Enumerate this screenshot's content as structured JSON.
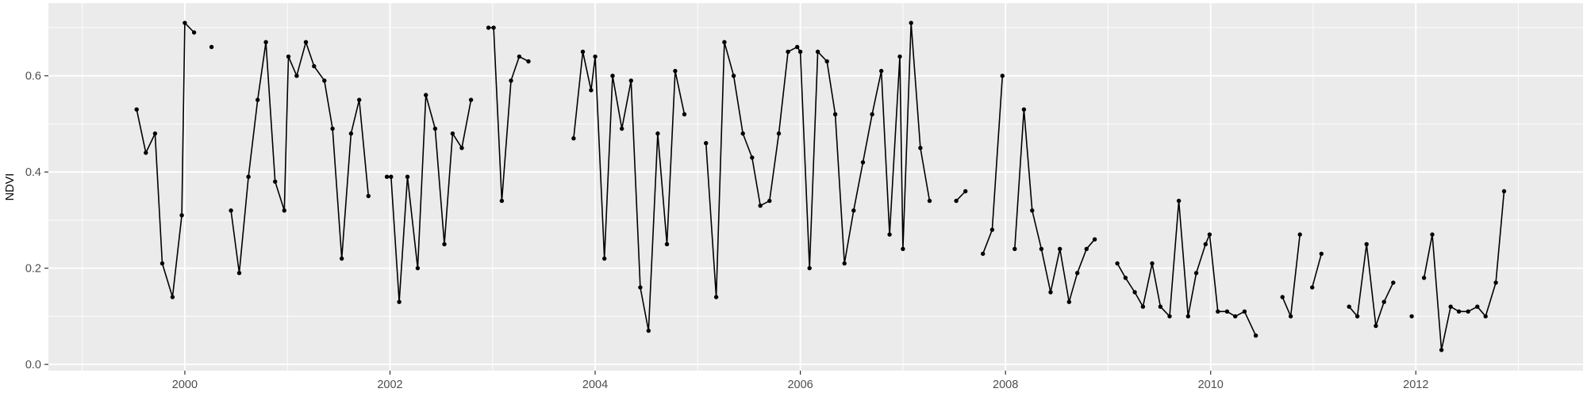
{
  "chart_data": {
    "type": "line",
    "title": "",
    "xlabel": "",
    "ylabel": "NDVI",
    "legend": "none",
    "grid": true,
    "x_axis": {
      "min": 1998.67,
      "max": 2013.63,
      "major_ticks": [
        {
          "value": 2000,
          "label": "2000"
        },
        {
          "value": 2002,
          "label": "2002"
        },
        {
          "value": 2004,
          "label": "2004"
        },
        {
          "value": 2006,
          "label": "2006"
        },
        {
          "value": 2008,
          "label": "2008"
        },
        {
          "value": 2010,
          "label": "2010"
        },
        {
          "value": 2012,
          "label": "2012"
        }
      ],
      "minor_ticks": [
        1999,
        2001,
        2003,
        2005,
        2007,
        2009,
        2011,
        2013
      ]
    },
    "y_axis": {
      "min": -0.013,
      "max": 0.751,
      "major_ticks": [
        {
          "value": 0.0,
          "label": "0.0"
        },
        {
          "value": 0.2,
          "label": "0.2"
        },
        {
          "value": 0.4,
          "label": "0.4"
        },
        {
          "value": 0.6,
          "label": "0.6"
        }
      ],
      "minor_ticks": [
        0.1,
        0.3,
        0.5,
        0.7
      ]
    },
    "style": {
      "panel_bg": "#ebebeb",
      "grid_major_color": "#ffffff",
      "grid_minor_color": "#ffffff",
      "line_color": "#000000",
      "point_color": "#000000",
      "tick_color": "#333333",
      "axis_text_color": "#4d4d4d"
    },
    "series_name": "NDVI",
    "segments": [
      [
        [
          1999.53,
          0.53
        ],
        [
          1999.62,
          0.44
        ],
        [
          1999.71,
          0.48
        ],
        [
          1999.78,
          0.21
        ],
        [
          1999.88,
          0.14
        ],
        [
          1999.97,
          0.31
        ],
        [
          2000.0,
          0.71
        ],
        [
          2000.09,
          0.69
        ]
      ],
      [
        [
          2000.26,
          0.66
        ]
      ],
      [
        [
          2000.45,
          0.32
        ],
        [
          2000.53,
          0.19
        ],
        [
          2000.62,
          0.39
        ],
        [
          2000.71,
          0.55
        ],
        [
          2000.79,
          0.67
        ],
        [
          2000.88,
          0.38
        ],
        [
          2000.97,
          0.32
        ],
        [
          2001.01,
          0.64
        ],
        [
          2001.09,
          0.6
        ],
        [
          2001.18,
          0.67
        ],
        [
          2001.26,
          0.62
        ],
        [
          2001.36,
          0.59
        ],
        [
          2001.44,
          0.49
        ],
        [
          2001.53,
          0.22
        ],
        [
          2001.62,
          0.48
        ],
        [
          2001.7,
          0.55
        ],
        [
          2001.79,
          0.35
        ]
      ],
      [
        [
          2001.97,
          0.39
        ],
        [
          2002.01,
          0.39
        ],
        [
          2002.09,
          0.13
        ],
        [
          2002.17,
          0.39
        ],
        [
          2002.27,
          0.2
        ],
        [
          2002.35,
          0.56
        ],
        [
          2002.44,
          0.49
        ],
        [
          2002.53,
          0.25
        ],
        [
          2002.61,
          0.48
        ],
        [
          2002.7,
          0.45
        ],
        [
          2002.79,
          0.55
        ]
      ],
      [
        [
          2002.96,
          0.7
        ],
        [
          2003.01,
          0.7
        ],
        [
          2003.09,
          0.34
        ],
        [
          2003.18,
          0.59
        ],
        [
          2003.26,
          0.64
        ],
        [
          2003.35,
          0.63
        ]
      ],
      [
        [
          2003.79,
          0.47
        ],
        [
          2003.88,
          0.65
        ],
        [
          2003.96,
          0.57
        ],
        [
          2004.0,
          0.64
        ],
        [
          2004.09,
          0.22
        ],
        [
          2004.17,
          0.6
        ],
        [
          2004.26,
          0.49
        ],
        [
          2004.35,
          0.59
        ],
        [
          2004.44,
          0.16
        ],
        [
          2004.52,
          0.07
        ],
        [
          2004.61,
          0.48
        ],
        [
          2004.7,
          0.25
        ],
        [
          2004.78,
          0.61
        ],
        [
          2004.87,
          0.52
        ]
      ],
      [
        [
          2005.08,
          0.46
        ],
        [
          2005.18,
          0.14
        ],
        [
          2005.26,
          0.67
        ],
        [
          2005.35,
          0.6
        ],
        [
          2005.44,
          0.48
        ],
        [
          2005.53,
          0.43
        ],
        [
          2005.61,
          0.33
        ],
        [
          2005.7,
          0.34
        ],
        [
          2005.79,
          0.48
        ],
        [
          2005.88,
          0.65
        ],
        [
          2005.97,
          0.66
        ],
        [
          2006.0,
          0.65
        ],
        [
          2006.09,
          0.2
        ],
        [
          2006.17,
          0.65
        ],
        [
          2006.26,
          0.63
        ],
        [
          2006.34,
          0.52
        ],
        [
          2006.43,
          0.21
        ],
        [
          2006.52,
          0.32
        ],
        [
          2006.61,
          0.42
        ],
        [
          2006.7,
          0.52
        ],
        [
          2006.79,
          0.61
        ],
        [
          2006.87,
          0.27
        ],
        [
          2006.97,
          0.64
        ],
        [
          2007.0,
          0.24
        ],
        [
          2007.08,
          0.71
        ],
        [
          2007.17,
          0.45
        ],
        [
          2007.26,
          0.34
        ]
      ],
      [
        [
          2007.52,
          0.34
        ],
        [
          2007.61,
          0.36
        ]
      ],
      [
        [
          2007.78,
          0.23
        ],
        [
          2007.87,
          0.28
        ],
        [
          2007.97,
          0.6
        ]
      ],
      [
        [
          2008.09,
          0.24
        ],
        [
          2008.18,
          0.53
        ],
        [
          2008.26,
          0.32
        ],
        [
          2008.35,
          0.24
        ],
        [
          2008.44,
          0.15
        ],
        [
          2008.53,
          0.24
        ],
        [
          2008.62,
          0.13
        ],
        [
          2008.7,
          0.19
        ],
        [
          2008.79,
          0.24
        ],
        [
          2008.87,
          0.26
        ]
      ],
      [
        [
          2009.09,
          0.21
        ],
        [
          2009.17,
          0.18
        ],
        [
          2009.26,
          0.15
        ],
        [
          2009.34,
          0.12
        ],
        [
          2009.43,
          0.21
        ],
        [
          2009.51,
          0.12
        ],
        [
          2009.6,
          0.1
        ],
        [
          2009.69,
          0.34
        ],
        [
          2009.78,
          0.1
        ],
        [
          2009.86,
          0.19
        ],
        [
          2009.95,
          0.25
        ],
        [
          2009.99,
          0.27
        ],
        [
          2010.07,
          0.11
        ],
        [
          2010.16,
          0.11
        ],
        [
          2010.24,
          0.1
        ],
        [
          2010.33,
          0.11
        ],
        [
          2010.44,
          0.06
        ]
      ],
      [
        [
          2010.7,
          0.14
        ],
        [
          2010.78,
          0.1
        ],
        [
          2010.87,
          0.27
        ]
      ],
      [
        [
          2010.99,
          0.16
        ],
        [
          2011.08,
          0.23
        ]
      ],
      [
        [
          2011.35,
          0.12
        ],
        [
          2011.43,
          0.1
        ],
        [
          2011.52,
          0.25
        ],
        [
          2011.61,
          0.08
        ],
        [
          2011.69,
          0.13
        ],
        [
          2011.78,
          0.17
        ]
      ],
      [
        [
          2011.96,
          0.1
        ]
      ],
      [
        [
          2012.08,
          0.18
        ],
        [
          2012.16,
          0.27
        ],
        [
          2012.25,
          0.03
        ],
        [
          2012.34,
          0.12
        ],
        [
          2012.42,
          0.11
        ],
        [
          2012.51,
          0.11
        ],
        [
          2012.6,
          0.12
        ],
        [
          2012.68,
          0.1
        ],
        [
          2012.78,
          0.17
        ],
        [
          2012.86,
          0.36
        ]
      ]
    ]
  }
}
